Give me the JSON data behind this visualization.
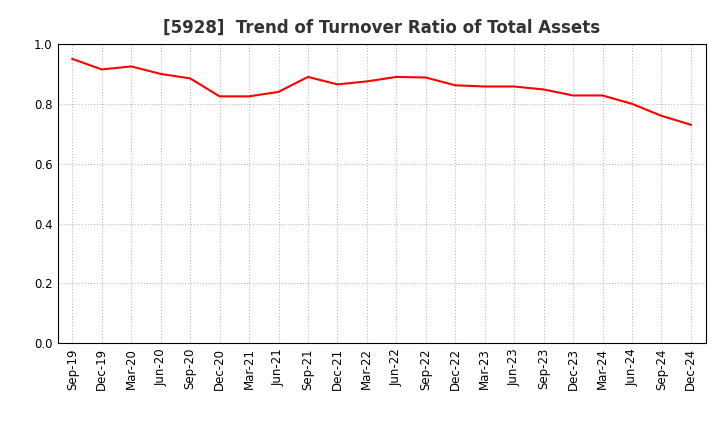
{
  "title": "[5928]  Trend of Turnover Ratio of Total Assets",
  "x_labels": [
    "Sep-19",
    "Dec-19",
    "Mar-20",
    "Jun-20",
    "Sep-20",
    "Dec-20",
    "Mar-21",
    "Jun-21",
    "Sep-21",
    "Dec-21",
    "Mar-22",
    "Jun-22",
    "Sep-22",
    "Dec-22",
    "Mar-23",
    "Jun-23",
    "Sep-23",
    "Dec-23",
    "Mar-24",
    "Jun-24",
    "Sep-24",
    "Dec-24"
  ],
  "values": [
    0.95,
    0.915,
    0.925,
    0.9,
    0.885,
    0.825,
    0.825,
    0.84,
    0.89,
    0.865,
    0.875,
    0.89,
    0.888,
    0.862,
    0.858,
    0.858,
    0.848,
    0.828,
    0.828,
    0.8,
    0.76,
    0.73
  ],
  "line_color": "#ff0000",
  "line_width": 1.5,
  "background_color": "#ffffff",
  "grid_color": "#bbbbbb",
  "ylim": [
    0.0,
    1.0
  ],
  "yticks": [
    0.0,
    0.2,
    0.4,
    0.6,
    0.8,
    1.0
  ],
  "title_fontsize": 12,
  "tick_fontsize": 8.5
}
